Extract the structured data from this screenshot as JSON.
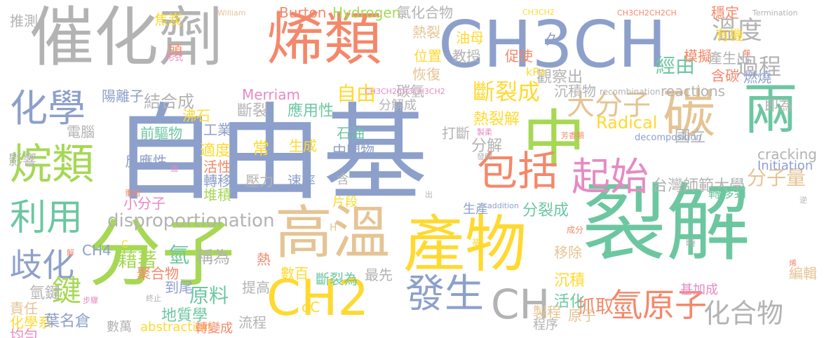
{
  "palette": {
    "green": "#6cc7a1",
    "orange": "#f4886a",
    "blue": "#8da0cb",
    "pink": "#e78ac3",
    "lime": "#a6d854",
    "yellow": "#ffd92f",
    "tan": "#e5c494",
    "gray": "#b3b3b3"
  },
  "words": [
    {
      "text": "自由基",
      "color": "blue"
    },
    {
      "text": "裂解",
      "color": "green"
    },
    {
      "text": "催化劑",
      "color": "gray"
    },
    {
      "text": "烯類",
      "color": "orange"
    },
    {
      "text": "CH3CH",
      "color": "blue"
    },
    {
      "text": "分子",
      "color": "lime"
    },
    {
      "text": "產物",
      "color": "yellow"
    },
    {
      "text": "高溫",
      "color": "tan"
    },
    {
      "text": "中",
      "color": "lime"
    },
    {
      "text": "碳",
      "color": "tan"
    },
    {
      "text": "兩",
      "color": "green"
    },
    {
      "text": "CH2",
      "color": "yellow"
    },
    {
      "text": "CH",
      "color": "gray"
    },
    {
      "text": "烷類",
      "color": "lime"
    },
    {
      "text": "化學",
      "color": "blue"
    },
    {
      "text": "利用",
      "color": "green"
    },
    {
      "text": "包括",
      "color": "orange"
    },
    {
      "text": "起始",
      "color": "pink"
    },
    {
      "text": "發生",
      "color": "blue"
    },
    {
      "text": "氫原子",
      "color": "orange"
    },
    {
      "text": "化合物",
      "color": "gray"
    },
    {
      "text": "大分子",
      "color": "tan"
    },
    {
      "text": "溫度",
      "color": "gray"
    },
    {
      "text": "過程",
      "color": "gray"
    },
    {
      "text": "斷裂成",
      "color": "yellow"
    },
    {
      "text": "歧化",
      "color": "blue"
    },
    {
      "text": "鍵",
      "color": "lime"
    },
    {
      "text": "disproportionation",
      "color": "gray"
    },
    {
      "text": "經由",
      "color": "green"
    },
    {
      "text": "Radical",
      "color": "yellow"
    },
    {
      "text": "reactions",
      "color": "gray"
    },
    {
      "text": "抓取",
      "color": "orange"
    },
    {
      "text": "自由",
      "color": "yellow"
    },
    {
      "text": "結合成",
      "color": "gray"
    },
    {
      "text": "斷裂",
      "color": "gray"
    },
    {
      "text": "應用性",
      "color": "green"
    },
    {
      "text": "石油",
      "color": "green"
    },
    {
      "text": "中間物",
      "color": "blue"
    },
    {
      "text": "分解",
      "color": "gray"
    },
    {
      "text": "前驅物",
      "color": "green"
    },
    {
      "text": "反應性",
      "color": "blue"
    },
    {
      "text": "原料",
      "color": "green"
    },
    {
      "text": "地質學",
      "color": "green"
    },
    {
      "text": "分子量",
      "color": "tan"
    },
    {
      "text": "台灣師範大學",
      "color": "gray"
    },
    {
      "text": "cracking",
      "color": "gray"
    },
    {
      "text": "Initiation",
      "color": "blue"
    },
    {
      "text": "國立",
      "color": "gray"
    },
    {
      "text": "熱裂解",
      "color": "yellow"
    },
    {
      "text": "分裂成",
      "color": "green"
    },
    {
      "text": "生產",
      "color": "blue"
    },
    {
      "text": "沉積物",
      "color": "gray"
    },
    {
      "text": "沉積",
      "color": "yellow"
    },
    {
      "text": "活化",
      "color": "green"
    },
    {
      "text": "原子",
      "color": "tan"
    },
    {
      "text": "移除",
      "color": "tan"
    },
    {
      "text": "製程",
      "color": "tan"
    },
    {
      "text": "程序",
      "color": "gray"
    },
    {
      "text": "氫",
      "color": "green"
    },
    {
      "text": "稱為",
      "color": "gray"
    },
    {
      "text": "到尾",
      "color": "blue"
    },
    {
      "text": "提高",
      "color": "gray"
    },
    {
      "text": "數百",
      "color": "yellow"
    },
    {
      "text": "斷裂為",
      "color": "green"
    },
    {
      "text": "最先",
      "color": "gray"
    },
    {
      "text": "藉著",
      "color": "lime"
    },
    {
      "text": "熱",
      "color": "orange"
    },
    {
      "text": "聚合物",
      "color": "orange"
    },
    {
      "text": "氫鍵",
      "color": "gray"
    },
    {
      "text": "責任",
      "color": "tan"
    },
    {
      "text": "化學系",
      "color": "yellow"
    },
    {
      "text": "均勻",
      "color": "pink"
    },
    {
      "text": "葉名倉",
      "color": "blue"
    },
    {
      "text": "數萬",
      "color": "gray"
    },
    {
      "text": "abstraction",
      "color": "yellow"
    },
    {
      "text": "轉變成",
      "color": "orange"
    },
    {
      "text": "流程",
      "color": "gray"
    },
    {
      "text": "oC",
      "color": "yellow"
    },
    {
      "text": "小分子",
      "color": "pink"
    },
    {
      "text": "沸石",
      "color": "yellow"
    },
    {
      "text": "工業",
      "color": "blue"
    },
    {
      "text": "適度",
      "color": "yellow"
    },
    {
      "text": "活性",
      "color": "orange"
    },
    {
      "text": "轉移",
      "color": "blue"
    },
    {
      "text": "堆積",
      "color": "lime"
    },
    {
      "text": "壓力",
      "color": "gray"
    },
    {
      "text": "速率",
      "color": "blue"
    },
    {
      "text": "生成",
      "color": "yellow"
    },
    {
      "text": "常",
      "color": "yellow"
    },
    {
      "text": "含",
      "color": "gray"
    },
    {
      "text": "片段",
      "color": "yellow"
    },
    {
      "text": "打斷",
      "color": "gray"
    },
    {
      "text": "陽離子",
      "color": "blue"
    },
    {
      "text": "電腦",
      "color": "gray"
    },
    {
      "text": "影響",
      "color": "gray"
    },
    {
      "text": "推測",
      "color": "gray"
    },
    {
      "text": "焦炭",
      "color": "yellow"
    },
    {
      "text": "頭",
      "color": "orange"
    },
    {
      "text": "形式",
      "color": "pink"
    },
    {
      "text": "Merriam",
      "color": "pink"
    },
    {
      "text": "Burton",
      "color": "orange"
    },
    {
      "text": "Hydrogen",
      "color": "lime"
    },
    {
      "text": "氯化合物",
      "color": "gray"
    },
    {
      "text": "熱裂",
      "color": "tan"
    },
    {
      "text": "位置",
      "color": "yellow"
    },
    {
      "text": "恢復",
      "color": "tan"
    },
    {
      "text": "碳氫",
      "color": "gray"
    },
    {
      "text": "分解成",
      "color": "gray"
    },
    {
      "text": "油母",
      "color": "yellow"
    },
    {
      "text": "教授",
      "color": "gray"
    },
    {
      "text": "促使",
      "color": "orange"
    },
    {
      "text": "久",
      "color": "blue"
    },
    {
      "text": "觀察出",
      "color": "gray"
    },
    {
      "text": "kPa",
      "color": "yellow"
    },
    {
      "text": "穩定",
      "color": "orange"
    },
    {
      "text": "有機",
      "color": "yellow"
    },
    {
      "text": "模擬",
      "color": "orange"
    },
    {
      "text": "產生出",
      "color": "gray"
    },
    {
      "text": "含碳",
      "color": "orange"
    },
    {
      "text": "燃燒",
      "color": "blue"
    },
    {
      "text": "類",
      "color": "orange"
    },
    {
      "text": "即為",
      "color": "gray"
    },
    {
      "text": "William",
      "color": "tan"
    },
    {
      "text": "CH3CH2",
      "color": "yellow"
    },
    {
      "text": "CH3CH2CH2CH",
      "color": "orange"
    },
    {
      "text": "Termination",
      "color": "gray"
    },
    {
      "text": "recombination",
      "color": "gray"
    },
    {
      "text": "CH3CH2CH3CH3CH2",
      "color": "pink"
    },
    {
      "text": "製柔",
      "color": "pink"
    },
    {
      "text": "decomposition",
      "color": "blue"
    },
    {
      "text": "發明",
      "color": "gray"
    },
    {
      "text": "芳香類",
      "color": "orange"
    },
    {
      "text": "出",
      "color": "gray"
    },
    {
      "text": "addition",
      "color": "blue"
    },
    {
      "text": "轉移到",
      "color": "green"
    },
    {
      "text": "成分",
      "color": "orange"
    },
    {
      "text": "逆",
      "color": "gray"
    },
    {
      "text": "時",
      "color": "gray"
    },
    {
      "text": "基",
      "color": "yellow"
    },
    {
      "text": "H",
      "color": "tan"
    },
    {
      "text": "C",
      "color": "yellow"
    },
    {
      "text": "CH4",
      "color": "blue"
    },
    {
      "text": "解",
      "color": "orange"
    },
    {
      "text": "造",
      "color": "pink"
    },
    {
      "text": "重組",
      "color": "orange"
    },
    {
      "text": "步驟",
      "color": "pink"
    },
    {
      "text": "終止",
      "color": "gray"
    },
    {
      "text": "基加成",
      "color": "pink"
    },
    {
      "text": "烯",
      "color": "orange"
    },
    {
      "text": "編輯",
      "color": "tan"
    }
  ]
}
